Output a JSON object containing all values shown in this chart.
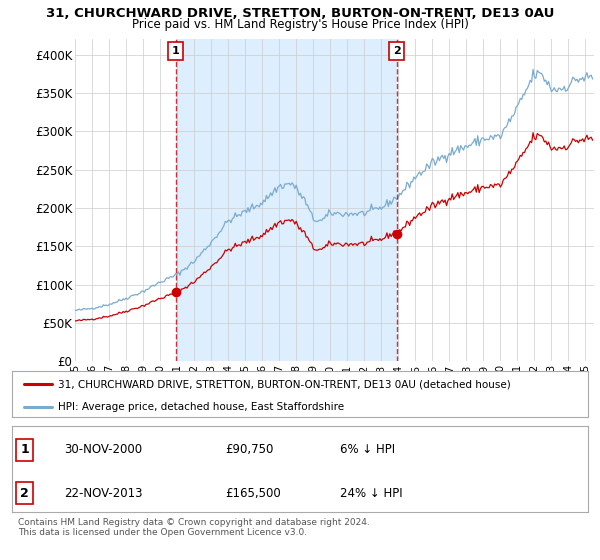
{
  "title": "31, CHURCHWARD DRIVE, STRETTON, BURTON-ON-TRENT, DE13 0AU",
  "subtitle": "Price paid vs. HM Land Registry's House Price Index (HPI)",
  "bg_color": "#ffffff",
  "plot_bg_color": "#ffffff",
  "shade_color": "#ddeeff",
  "grid_color": "#cccccc",
  "line1_color": "#cc0000",
  "line2_color": "#7aabcf",
  "vline_color": "#cc0000",
  "annotation1_label": "1",
  "annotation2_label": "2",
  "vline1_x": 2000.917,
  "vline2_x": 2013.9,
  "sale1_price": 90750,
  "sale2_price": 165500,
  "ylim": [
    0,
    420000
  ],
  "yticks": [
    0,
    50000,
    100000,
    150000,
    200000,
    250000,
    300000,
    350000,
    400000
  ],
  "ytick_labels": [
    "£0",
    "£50K",
    "£100K",
    "£150K",
    "£200K",
    "£250K",
    "£300K",
    "£350K",
    "£400K"
  ],
  "legend_line1": "31, CHURCHWARD DRIVE, STRETTON, BURTON-ON-TRENT, DE13 0AU (detached house)",
  "legend_line2": "HPI: Average price, detached house, East Staffordshire",
  "table_row1": [
    "1",
    "30-NOV-2000",
    "£90,750",
    "6% ↓ HPI"
  ],
  "table_row2": [
    "2",
    "22-NOV-2013",
    "£165,500",
    "24% ↓ HPI"
  ],
  "footnote": "Contains HM Land Registry data © Crown copyright and database right 2024.\nThis data is licensed under the Open Government Licence v3.0.",
  "xmin": 1995.0,
  "xmax": 2025.5
}
